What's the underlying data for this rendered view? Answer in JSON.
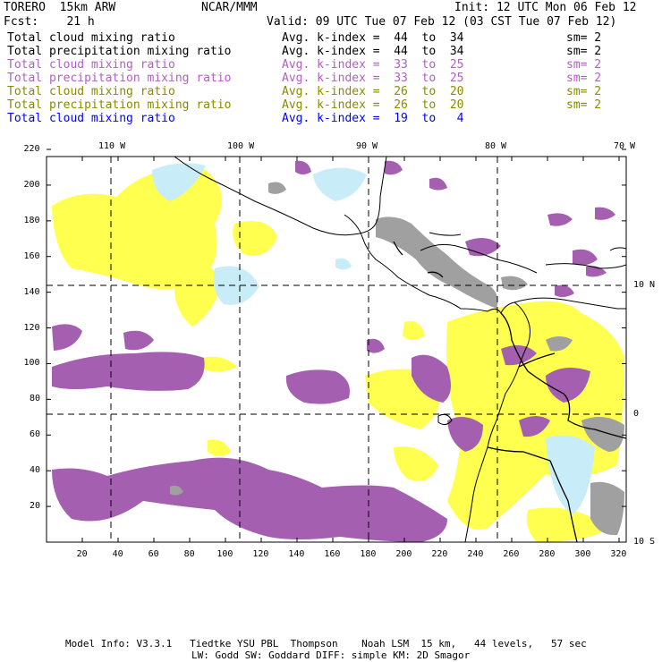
{
  "header": {
    "model": "TORERO  15km ARW",
    "org": "NCAR/MMM",
    "init": "Init: 12 UTC Mon 06 Feb 12",
    "fcst": "Fcst:    21 h",
    "valid": "Valid: 09 UTC Tue 07 Feb 12 (03 CST Tue 07 Feb 12)"
  },
  "legend": [
    {
      "field": "Total cloud mixing ratio",
      "kindex": "Avg. k-index =  44  to  34",
      "sm": "sm= 2",
      "color": "#000000"
    },
    {
      "field": "Total precipitation mixing ratio",
      "kindex": "Avg. k-index =  44  to  34",
      "sm": "sm= 2",
      "color": "#000000"
    },
    {
      "field": "Total cloud mixing ratio",
      "kindex": "Avg. k-index =  33  to  25",
      "sm": "sm= 2",
      "color": "#b060c0"
    },
    {
      "field": "Total precipitation mixing ratio",
      "kindex": "Avg. k-index =  33  to  25",
      "sm": "sm= 2",
      "color": "#b060c0"
    },
    {
      "field": "Total cloud mixing ratio",
      "kindex": "Avg. k-index =  26  to  20",
      "sm": "sm= 2",
      "color": "#8a8a00"
    },
    {
      "field": "Total precipitation mixing ratio",
      "kindex": "Avg. k-index =  26  to  20",
      "sm": "sm= 2",
      "color": "#8a8a00"
    },
    {
      "field": "Total cloud mixing ratio",
      "kindex": "Avg. k-index =  19  to   4",
      "sm": "",
      "color": "#0000ff"
    }
  ],
  "axes": {
    "x_ticks": [
      "20",
      "40",
      "60",
      "80",
      "100",
      "120",
      "140",
      "160",
      "180",
      "200",
      "220",
      "240",
      "260",
      "280",
      "300",
      "320"
    ],
    "y_ticks": [
      "20",
      "40",
      "60",
      "80",
      "100",
      "120",
      "140",
      "160",
      "180",
      "200",
      "220"
    ],
    "lon_labels": [
      "110 W",
      "100 W",
      "90 W",
      "80 W",
      "70 W"
    ],
    "lat_labels": [
      "10 N",
      "0",
      "10 S"
    ]
  },
  "footer": {
    "line1": "Model Info: V3.3.1   Tiedtke YSU PBL  Thompson    Noah LSM  15 km,   44 levels,   57 sec",
    "line2": "LW: Godd SW: Goddard DIFF: simple KM: 2D Smagor"
  },
  "colors": {
    "cloud_k44_34": "#a0a0a0",
    "cloud_k33_25": "#a060b0",
    "cloud_k26_20": "#ffff40",
    "cloud_k19_4": "#c8ecf8"
  }
}
